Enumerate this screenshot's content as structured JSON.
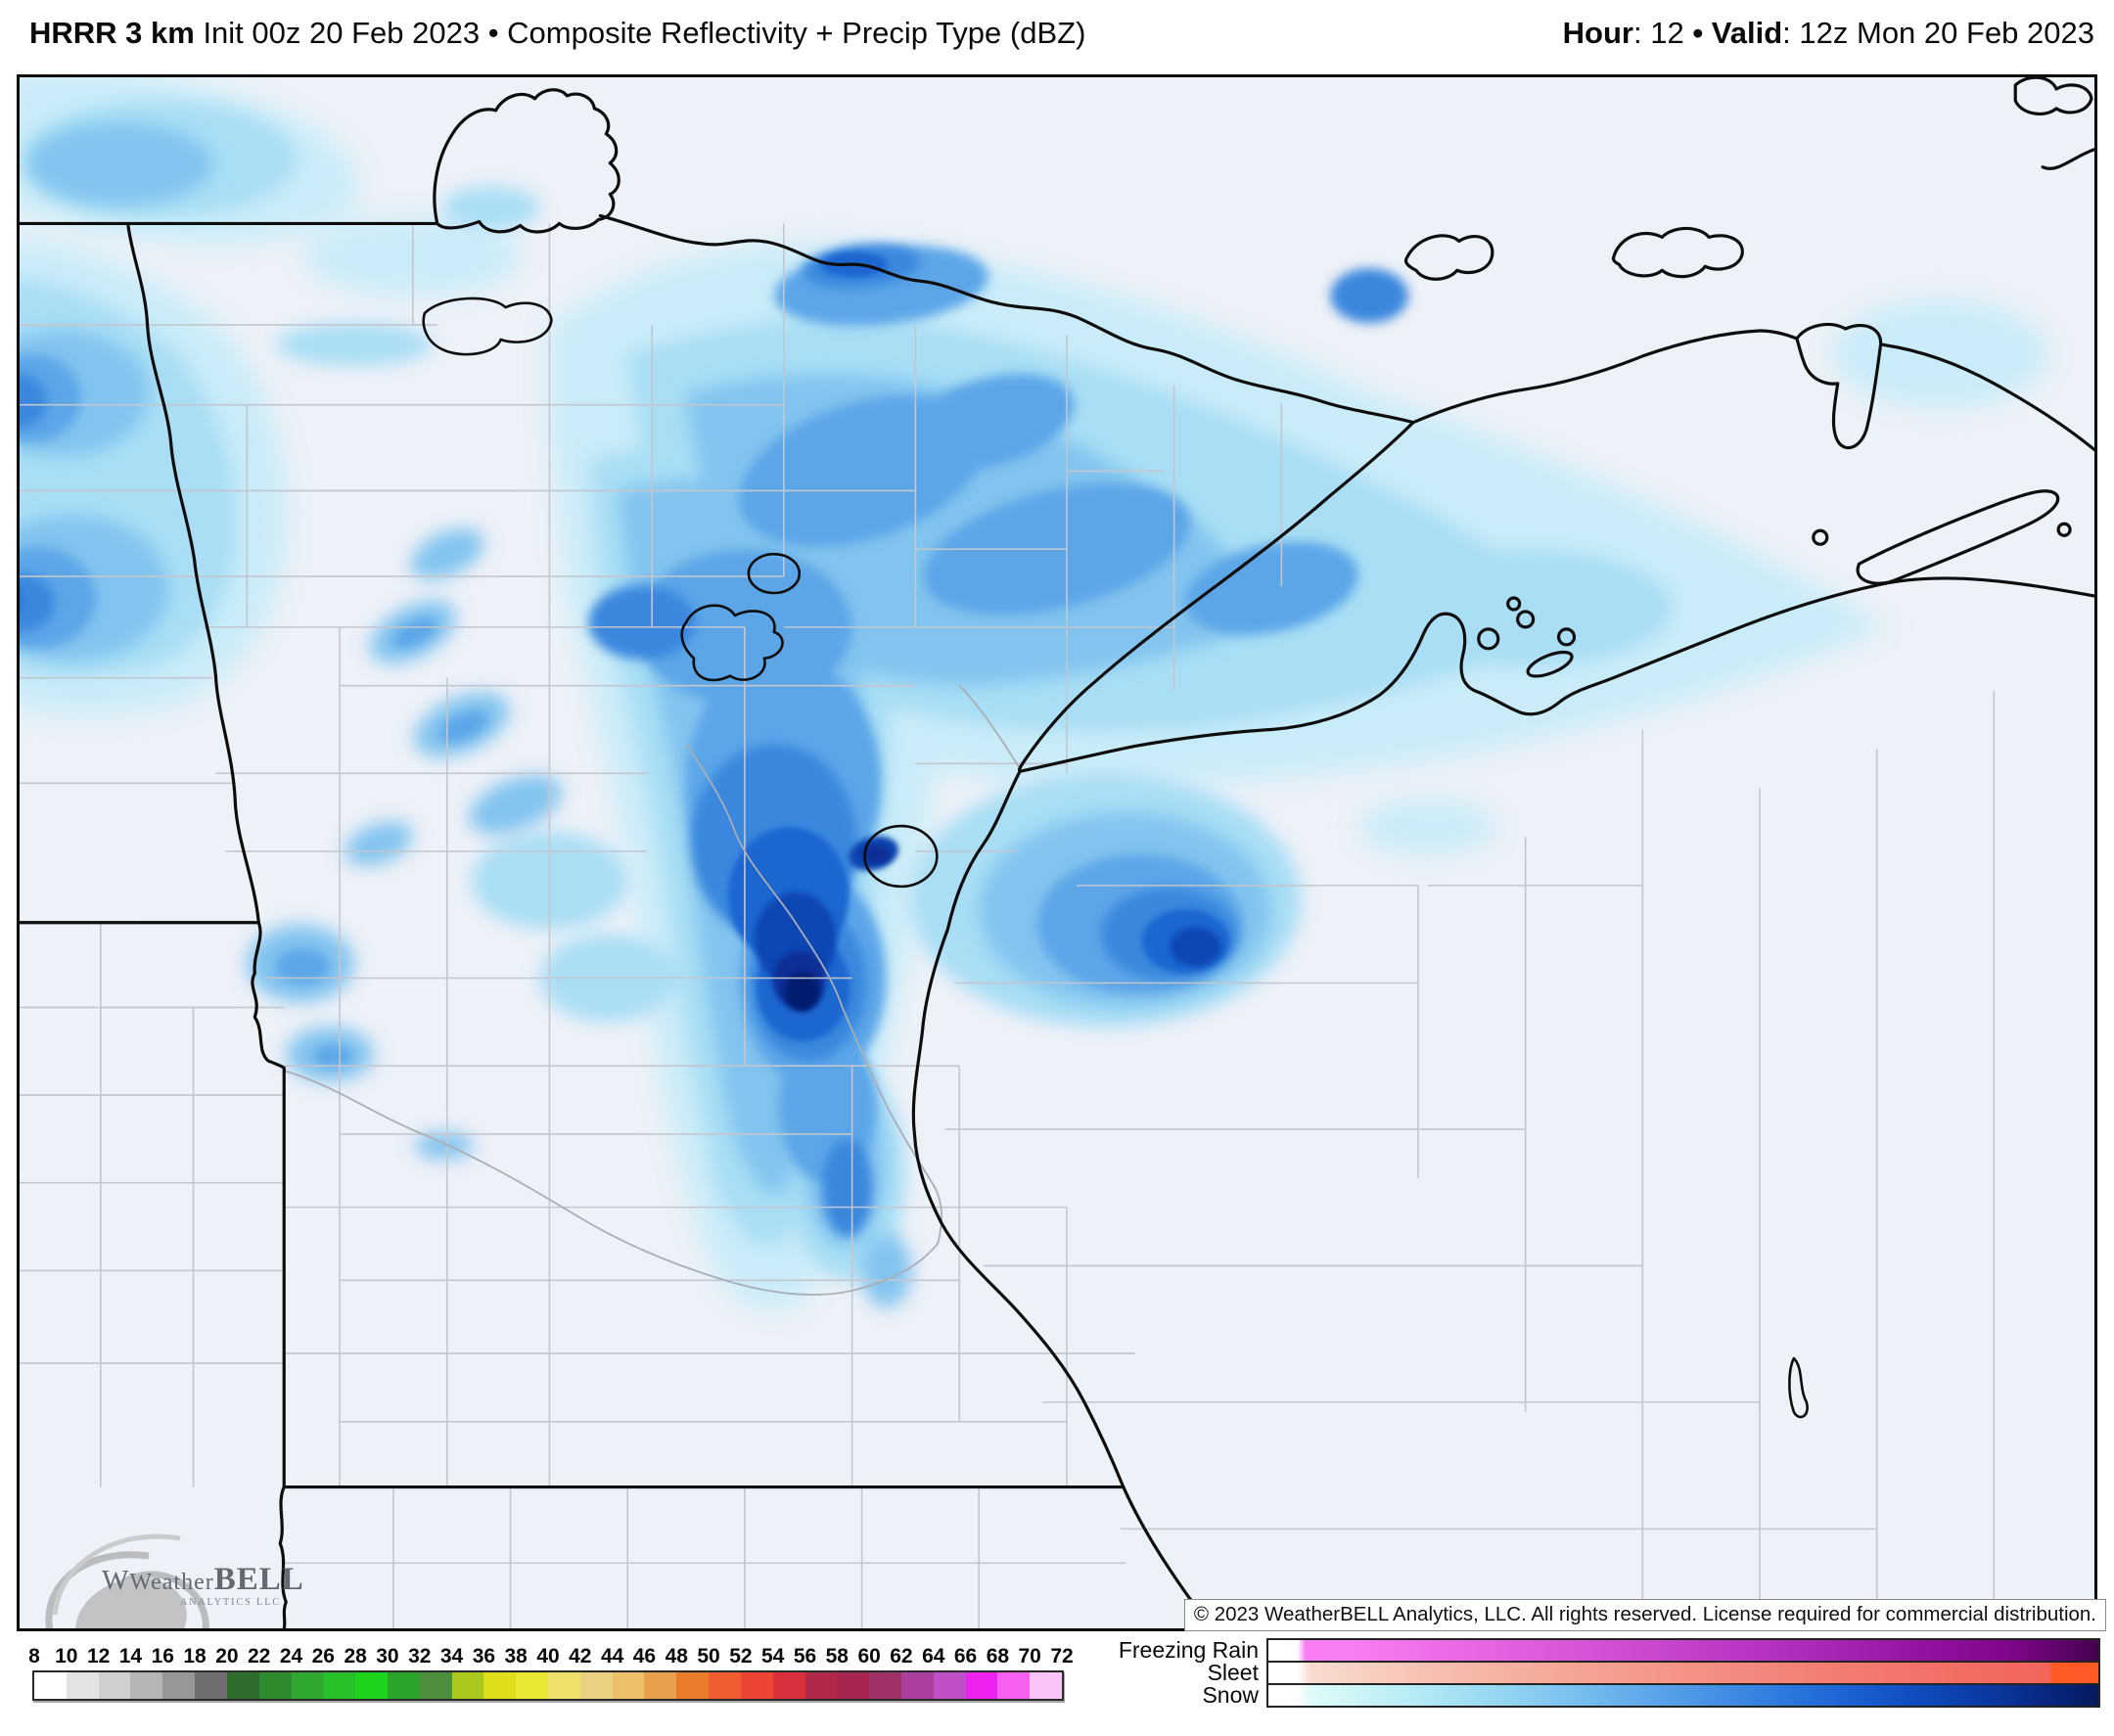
{
  "header": {
    "model": "HRRR 3 km",
    "title_rest": " Init 00z 20 Feb 2023 • Composite Reflectivity + Precip Type (dBZ)",
    "hour_label": "Hour",
    "hour_value": ": 12",
    "bullet": " • ",
    "valid_label": "Valid",
    "valid_value": ": 12z Mon 20 Feb 2023"
  },
  "map": {
    "background_color": "#edf1f8",
    "state_border_color": "#0d0d0d",
    "county_line_color": "#c3c6ce",
    "river_line_color": "#a9adb6",
    "snow_shades": [
      "#e6f7fc",
      "#c9ecf8",
      "#a9def5",
      "#82c4ef",
      "#5ba6e8",
      "#3a87de",
      "#1f66d0",
      "#0d47b4",
      "#082f95",
      "#051c6e"
    ],
    "watermark": {
      "brand_weather": "Weather",
      "brand_bell": "BELL",
      "sub": "ANALYTICS LLC"
    },
    "copyright": "© 2023 WeatherBELL Analytics, LLC. All rights reserved. License required for commercial distribution."
  },
  "legend_dbz": {
    "ticks": [
      "8",
      "10",
      "12",
      "14",
      "16",
      "18",
      "20",
      "22",
      "24",
      "26",
      "28",
      "30",
      "32",
      "34",
      "36",
      "38",
      "40",
      "42",
      "44",
      "46",
      "48",
      "50",
      "52",
      "54",
      "56",
      "58",
      "60",
      "62",
      "64",
      "66",
      "68",
      "70",
      "72"
    ],
    "colors": [
      "#ffffff",
      "#e3e3e3",
      "#cfcfcf",
      "#b5b5b5",
      "#979797",
      "#6f6f6f",
      "#2f6d2f",
      "#2e8b2e",
      "#30a830",
      "#28c028",
      "#1dd41d",
      "#2aa52a",
      "#4d8f3c",
      "#aac81e",
      "#dede1c",
      "#e8e833",
      "#eee06a",
      "#ecd182",
      "#eec06a",
      "#e8a04c",
      "#e87c28",
      "#ee5c30",
      "#ee4434",
      "#d8303c",
      "#b02848",
      "#a62650",
      "#a03268",
      "#aa3f9e",
      "#c050c8",
      "#ee22ee",
      "#f560f0",
      "#fbc4f6"
    ]
  },
  "legend_ptype": {
    "rows": [
      {
        "label": "Freezing Rain",
        "stops": [
          "#ffffff 0%",
          "#ffffff 3.5%",
          "#f87df2 4.5%",
          "#f87df2 10%",
          "#ef6ce9 20%",
          "#df5bdc 32%",
          "#cc49cf 45%",
          "#b935c2 58%",
          "#a522b0 70%",
          "#92109d 80%",
          "#7c0587 90%",
          "#5c0468 96%",
          "#43024e 100%"
        ]
      },
      {
        "label": "Sleet",
        "stops": [
          "#ffffff 0%",
          "#ffffff 3.5%",
          "#f9dcd1 5%",
          "#f8cbbd 14%",
          "#f6b5a5 26%",
          "#f5a191 40%",
          "#f48c80 55%",
          "#f37b71 70%",
          "#f26c63 85%",
          "#f2645c 94%",
          "#ff5a26 94.5%",
          "#ff5a26 100%"
        ]
      },
      {
        "label": "Snow",
        "stops": [
          "#ffffff 0%",
          "#ffffff 3.5%",
          "#e0fbfa 5%",
          "#c8f3f7 12%",
          "#aee7f5 20%",
          "#95d6f2 28%",
          "#7cc2ef 36%",
          "#60a9eb 45%",
          "#4490e5 54%",
          "#2b76dd 63%",
          "#175cd0 72%",
          "#0d47b8 80%",
          "#0a359c 88%",
          "#07267e 94%",
          "#051a5e 100%"
        ]
      }
    ]
  }
}
